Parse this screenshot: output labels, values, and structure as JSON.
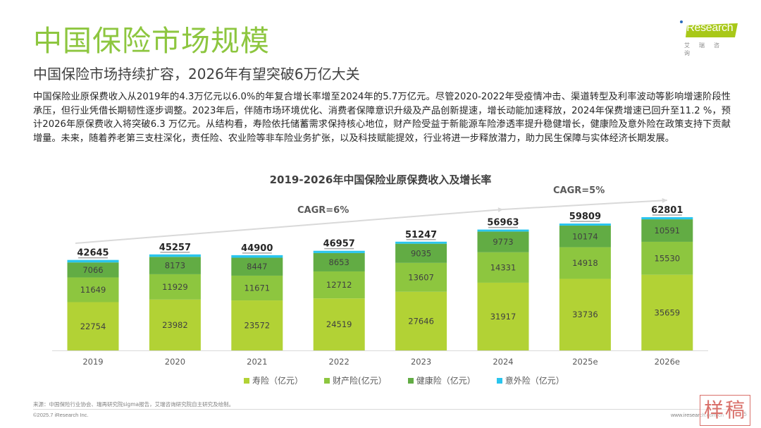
{
  "header": {
    "title": "中国保险市场规模",
    "subtitle": "中国保险市场持续扩容，2026年有望突破6万亿大关",
    "body": "中国保险业原保费收入从2019年的4.3万亿元以6.0%的年复合增长率增至2024年的5.7万亿元。尽管2020-2022年受疫情冲击、渠道转型及利率波动等影响增速阶段性承压，但行业凭借长期韧性逐步调整。2023年后，伴随市场环境优化、消费者保障意识升级及产品创新提速，增长动能加速释放，2024年保费增速已回升至11.2 %，预计2026年原保费收入将突破6.3 万亿元。从结构看，寿险依托储蓄需求保持核心地位，财产险受益于新能源车险渗透率提升稳健增长，健康险及意外险在政策支持下贡献增量。未来，随着养老第三支柱深化，责任险、农业险等非车险业务扩张，以及科技赋能提效，行业将进一步释放潜力，助力民生保障与实体经济长期发展。"
  },
  "logo": {
    "name": "iResearch",
    "cn": "艾瑞咨询",
    "accent": "#a8c818"
  },
  "chart_data": {
    "type": "bar",
    "stacked": true,
    "title": "2019-2026年中国保险业原保费收入及增长率",
    "xlabel": "",
    "ylabel": "",
    "categories": [
      "2019",
      "2020",
      "2021",
      "2022",
      "2023",
      "2024",
      "2025e",
      "2026e"
    ],
    "totals": [
      42645,
      45257,
      44900,
      46957,
      51247,
      56963,
      59809,
      62801
    ],
    "series": [
      {
        "name": "寿险（亿元）",
        "color": "#b2d235",
        "values": [
          22754,
          23982,
          23572,
          24519,
          27646,
          31917,
          33736,
          35659
        ]
      },
      {
        "name": "财产险(亿元）",
        "color": "#8dc63f",
        "values": [
          11649,
          11929,
          11671,
          12712,
          13607,
          14331,
          14918,
          15530
        ]
      },
      {
        "name": "健康险（亿元）",
        "color": "#62ac44",
        "values": [
          7066,
          8173,
          8447,
          8653,
          9035,
          9773,
          10174,
          10591
        ]
      },
      {
        "name": "意外险（亿元）",
        "color": "#29c5ee",
        "values": [
          1176,
          1173,
          1210,
          1073,
          959,
          942,
          981,
          1021
        ],
        "labeled": false
      }
    ],
    "annotations": [
      {
        "text": "CAGR=6%",
        "from": "2019",
        "to": "2024"
      },
      {
        "text": "CAGR=5%",
        "from": "2024",
        "to": "2026e"
      }
    ],
    "ylim": [
      0,
      66000
    ],
    "grid": false,
    "legend": "bottom"
  },
  "footer": {
    "source": "来源：中国保险行业协会、瑞再研究院sigma报告，艾瑞咨询研究院自主研究及绘制。",
    "copyright": "©2025.7 iResearch Inc.",
    "website": "www.iresearch.com.cn",
    "page": "5",
    "stamp": "样稿"
  }
}
